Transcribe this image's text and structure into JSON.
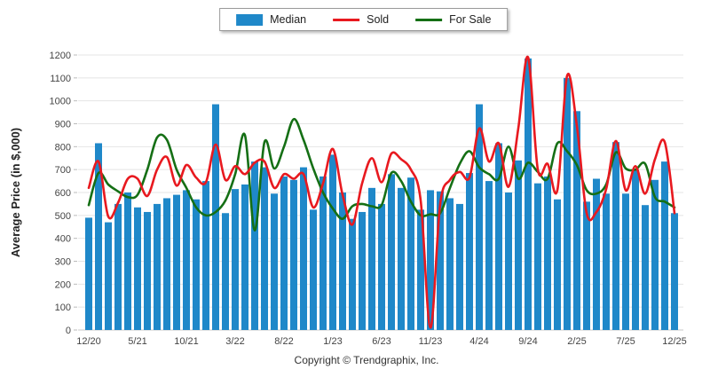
{
  "legend": {
    "items": [
      {
        "label": "Median",
        "type": "bar",
        "color": "#1f88c9"
      },
      {
        "label": "Sold",
        "type": "line",
        "color": "#e8191f"
      },
      {
        "label": "For Sale",
        "type": "line",
        "color": "#156f15"
      }
    ]
  },
  "footer": {
    "copyright": "Copyright © Trendgraphix, Inc."
  },
  "chart_data": {
    "type": "bar",
    "title": "",
    "xlabel": "",
    "ylabel": "Average Price (in $,000)",
    "ylim": [
      0,
      1200
    ],
    "ytick_step": 100,
    "grid": "horizontal",
    "legend_position": "top-center",
    "x_tick_labels": [
      "12/20",
      "5/21",
      "10/21",
      "3/22",
      "8/22",
      "1/23",
      "6/23",
      "11/23",
      "4/24",
      "9/24",
      "2/25",
      "7/25",
      "12/25"
    ],
    "x_tick_every": 5,
    "categories": [
      "12/20",
      "1/21",
      "2/21",
      "3/21",
      "4/21",
      "5/21",
      "6/21",
      "7/21",
      "8/21",
      "9/21",
      "10/21",
      "11/21",
      "12/21",
      "1/22",
      "2/22",
      "3/22",
      "4/22",
      "5/22",
      "6/22",
      "7/22",
      "8/22",
      "9/22",
      "10/22",
      "11/22",
      "12/22",
      "1/23",
      "2/23",
      "3/23",
      "4/23",
      "5/23",
      "6/23",
      "7/23",
      "8/23",
      "9/23",
      "10/23",
      "11/23",
      "12/23",
      "1/24",
      "2/24",
      "3/24",
      "4/24",
      "5/24",
      "6/24",
      "7/24",
      "8/24",
      "9/24",
      "10/24",
      "11/24",
      "12/24",
      "1/25",
      "2/25",
      "3/25",
      "4/25",
      "5/25",
      "6/25",
      "7/25",
      "8/25",
      "9/25",
      "10/25",
      "11/25",
      "12/25"
    ],
    "series": [
      {
        "name": "Median",
        "type": "bar",
        "color": "#1f88c9",
        "values": [
          490,
          815,
          470,
          550,
          600,
          535,
          515,
          550,
          575,
          590,
          610,
          570,
          650,
          985,
          510,
          615,
          635,
          735,
          710,
          595,
          670,
          655,
          710,
          525,
          670,
          765,
          600,
          485,
          515,
          620,
          550,
          680,
          620,
          665,
          525,
          610,
          605,
          575,
          550,
          685,
          985,
          650,
          815,
          600,
          740,
          1185,
          640,
          670,
          570,
          1100,
          955,
          560,
          660,
          595,
          820,
          595,
          700,
          545,
          655,
          735,
          510
        ]
      },
      {
        "name": "Sold",
        "type": "line",
        "color": "#e8191f",
        "values": [
          620,
          735,
          495,
          555,
          660,
          660,
          585,
          700,
          755,
          630,
          720,
          665,
          645,
          810,
          655,
          715,
          680,
          730,
          735,
          620,
          680,
          660,
          680,
          535,
          640,
          790,
          590,
          460,
          640,
          750,
          645,
          770,
          745,
          700,
          565,
          10,
          550,
          655,
          690,
          665,
          880,
          735,
          815,
          625,
          880,
          1190,
          700,
          725,
          610,
          1110,
          890,
          510,
          515,
          615,
          825,
          610,
          715,
          595,
          745,
          820,
          510
        ]
      },
      {
        "name": "For Sale",
        "type": "line",
        "color": "#156f15",
        "values": [
          545,
          685,
          635,
          605,
          580,
          590,
          700,
          840,
          830,
          700,
          620,
          535,
          500,
          515,
          565,
          680,
          850,
          435,
          820,
          705,
          800,
          920,
          830,
          705,
          600,
          530,
          485,
          540,
          550,
          540,
          545,
          685,
          650,
          560,
          500,
          505,
          510,
          620,
          725,
          780,
          710,
          680,
          660,
          800,
          660,
          730,
          690,
          660,
          815,
          780,
          720,
          610,
          595,
          635,
          775,
          705,
          700,
          725,
          580,
          560,
          535
        ]
      }
    ]
  }
}
